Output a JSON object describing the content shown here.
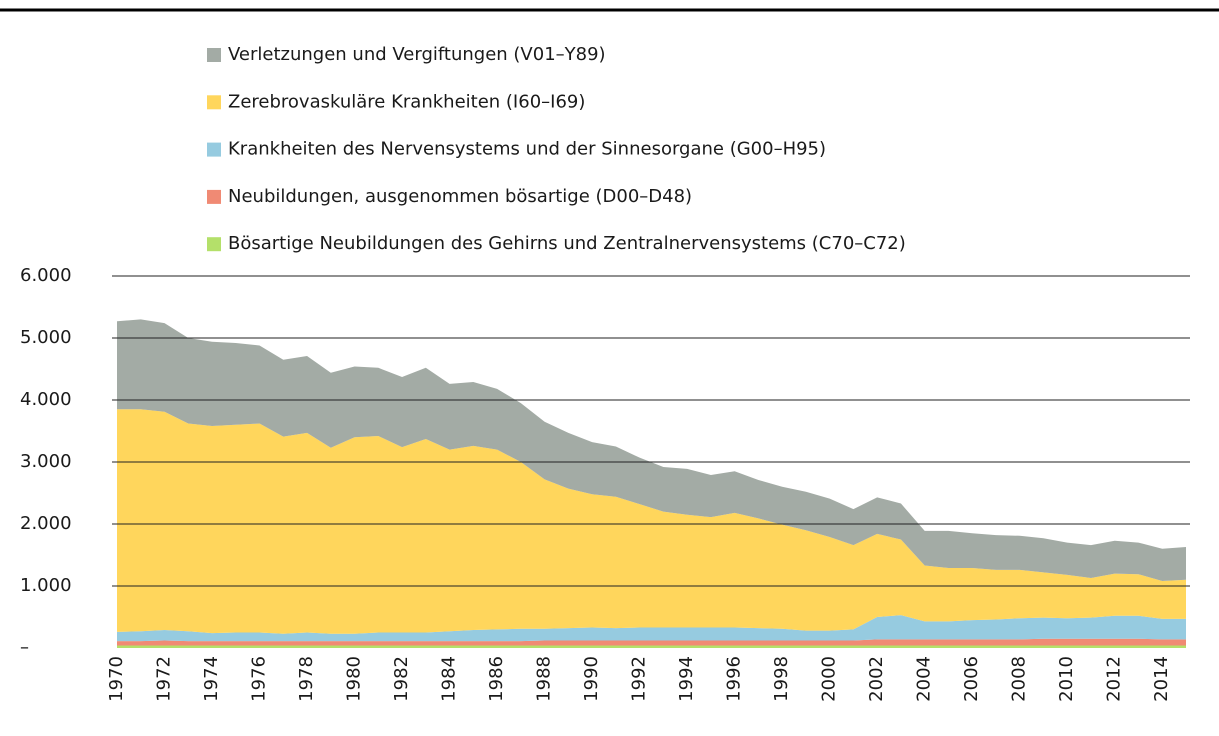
{
  "chart_data": {
    "type": "area",
    "stacked": true,
    "categories": [
      "1970",
      null,
      "1972",
      null,
      "1974",
      null,
      "1976",
      null,
      "1978",
      null,
      "1980",
      null,
      "1982",
      null,
      "1984",
      null,
      "1986",
      null,
      "1988",
      null,
      "1990",
      null,
      "1992",
      null,
      "1994",
      null,
      "1996",
      null,
      "1998",
      null,
      "2000",
      null,
      "2002",
      null,
      "2004",
      null,
      "2006",
      null,
      "2008",
      null,
      "2010",
      null,
      "2012",
      null,
      "2014",
      null
    ],
    "series": [
      {
        "name": "Bösartige Neubildungen des Gehirns und Zentralnervensystems (C70–C72)",
        "color": "#b4e06a",
        "values": [
          40,
          40,
          40,
          40,
          40,
          40,
          40,
          40,
          40,
          40,
          40,
          40,
          40,
          40,
          40,
          40,
          40,
          40,
          40,
          40,
          40,
          40,
          40,
          40,
          40,
          40,
          40,
          40,
          40,
          40,
          40,
          40,
          40,
          40,
          40,
          40,
          40,
          40,
          40,
          40,
          40,
          40,
          40,
          40,
          40,
          40
        ]
      },
      {
        "name": "Neubildungen, ausgenommen bösartige (D00–D48)",
        "color": "#f08a74",
        "values": [
          70,
          70,
          80,
          70,
          70,
          70,
          70,
          70,
          70,
          70,
          70,
          70,
          70,
          70,
          70,
          70,
          70,
          70,
          80,
          80,
          80,
          80,
          80,
          80,
          80,
          80,
          80,
          80,
          80,
          80,
          80,
          80,
          100,
          100,
          100,
          100,
          100,
          100,
          100,
          110,
          110,
          110,
          110,
          110,
          100,
          100
        ]
      },
      {
        "name": "Krankheiten des Nervensystems und der Sinnesorgane (G00–H95)",
        "color": "#96cbe0",
        "values": [
          150,
          160,
          170,
          160,
          130,
          140,
          140,
          120,
          140,
          120,
          120,
          140,
          140,
          140,
          160,
          180,
          190,
          200,
          190,
          200,
          210,
          200,
          210,
          210,
          210,
          210,
          210,
          200,
          190,
          160,
          160,
          180,
          360,
          390,
          290,
          290,
          310,
          320,
          340,
          340,
          330,
          340,
          370,
          370,
          330,
          330
        ]
      },
      {
        "name": "Zerebrovaskuläre Krankheiten (I60–I69)",
        "color": "#ffd65c",
        "values": [
          3590,
          3580,
          3520,
          3350,
          3340,
          3350,
          3370,
          3180,
          3220,
          3000,
          3170,
          3170,
          2990,
          3120,
          2930,
          2970,
          2900,
          2690,
          2410,
          2250,
          2150,
          2120,
          1990,
          1870,
          1820,
          1780,
          1850,
          1770,
          1680,
          1620,
          1510,
          1360,
          1340,
          1220,
          900,
          860,
          840,
          800,
          780,
          730,
          700,
          640,
          680,
          670,
          610,
          630
        ]
      },
      {
        "name": "Verletzungen und Vergiftungen (V01–Y89)",
        "color": "#a3aba5",
        "values": [
          1420,
          1450,
          1430,
          1380,
          1360,
          1320,
          1260,
          1240,
          1240,
          1210,
          1140,
          1100,
          1130,
          1150,
          1060,
          1030,
          980,
          950,
          930,
          900,
          840,
          810,
          750,
          720,
          740,
          680,
          670,
          620,
          610,
          620,
          620,
          580,
          590,
          580,
          560,
          600,
          560,
          560,
          550,
          550,
          520,
          530,
          530,
          510,
          520,
          530
        ]
      }
    ],
    "ylim": [
      0,
      6000
    ],
    "yticks": [
      {
        "value": 0,
        "label": "–"
      },
      {
        "value": 1000,
        "label": "1.000"
      },
      {
        "value": 2000,
        "label": "2.000"
      },
      {
        "value": 3000,
        "label": "3.000"
      },
      {
        "value": 4000,
        "label": "4.000"
      },
      {
        "value": 5000,
        "label": "5.000"
      },
      {
        "value": 6000,
        "label": "6.000"
      }
    ],
    "grid": true
  }
}
